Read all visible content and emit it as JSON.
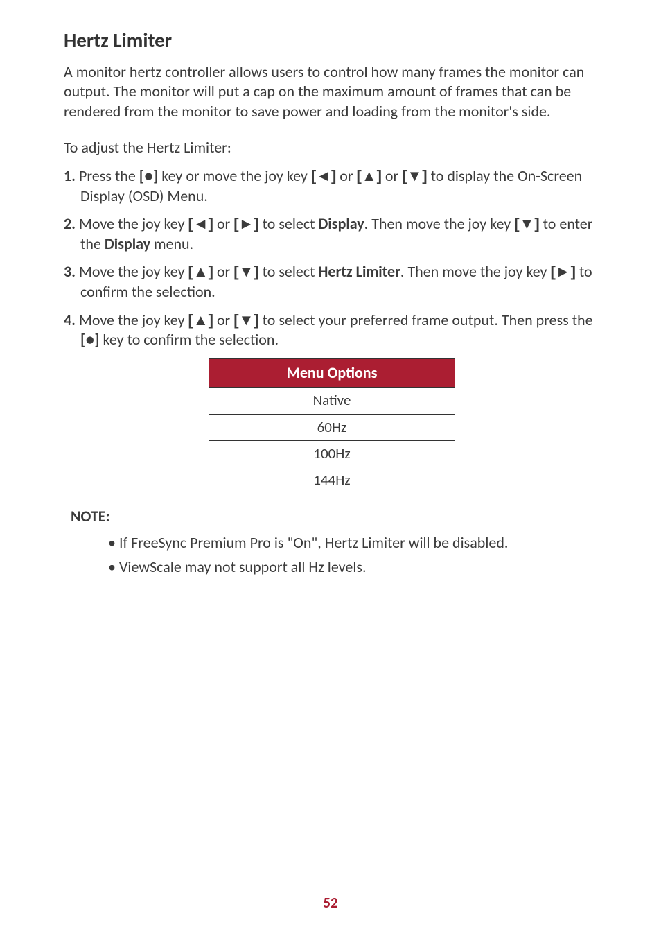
{
  "heading": "Hertz Limiter",
  "intro": "A monitor hertz controller allows users to control how many frames the monitor can output. The monitor will put a cap on the maximum amount of frames that can be rendered from the monitor to save power and loading from the monitor's side.",
  "lead": "To adjust the Hertz Limiter:",
  "steps": {
    "s1": {
      "num": "1.",
      "t1": "Press the ",
      "k1": "[●]",
      "t2": " key or move the joy key ",
      "k2": "[◄]",
      "t3": " or ",
      "k3": "[▲]",
      "t4": " or ",
      "k4": "[▼]",
      "t5": " to display the On-Screen Display (OSD) Menu."
    },
    "s2": {
      "num": "2.",
      "t1": "Move the joy key ",
      "k1": "[◄]",
      "t2": " or ",
      "k2": "[►]",
      "t3": " to select ",
      "b1": "Display",
      "t4": ". Then move the joy key ",
      "k3": "[▼]",
      "t5": " to enter the ",
      "b2": "Display",
      "t6": " menu."
    },
    "s3": {
      "num": "3.",
      "t1": "Move the joy key ",
      "k1": "[▲]",
      "t2": " or ",
      "k2": "[▼]",
      "t3": " to select ",
      "b1": "Hertz Limiter",
      "t4": ". Then move the joy key ",
      "k3": "[►]",
      "t5": " to confirm the selection."
    },
    "s4": {
      "num": "4.",
      "t1": "Move the joy key ",
      "k1": "[▲]",
      "t2": " or ",
      "k2": "[▼]",
      "t3": " to select your preferred frame output. Then press the ",
      "k3": "[●]",
      "t4": " key to confirm the selection."
    }
  },
  "table": {
    "header": "Menu Options",
    "rows": [
      "Native",
      "60Hz",
      "100Hz",
      "144Hz"
    ]
  },
  "note_heading": "NOTE:",
  "notes": {
    "n1": "If FreeSync Premium Pro is \"On\", Hertz Limiter will be disabled.",
    "n2": "ViewScale may not support all Hz levels."
  },
  "page_number": "52",
  "colors": {
    "accent": "#ab1e32",
    "text": "#3b3b3b",
    "border": "#333333"
  }
}
